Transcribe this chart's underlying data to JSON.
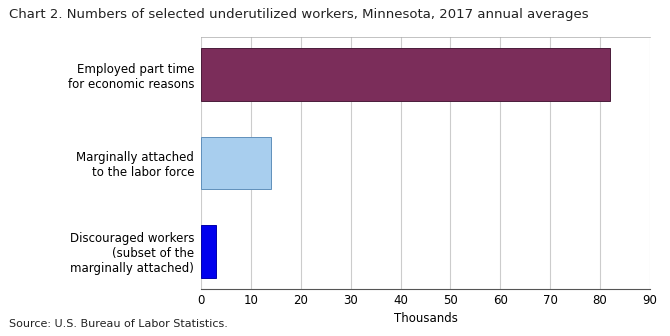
{
  "title": "Chart 2. Numbers of selected underutilized workers, Minnesota, 2017 annual averages",
  "categories": [
    "Discouraged workers\n(subset of the\nmarginally attached)",
    "Marginally attached\nto the labor force",
    "Employed part time\nfor economic reasons"
  ],
  "values": [
    3.0,
    14.0,
    82.0
  ],
  "bar_colors": [
    "#0000EE",
    "#A8CEEE",
    "#7B2D5A"
  ],
  "bar_edgecolors": [
    "#0000AA",
    "#6090BB",
    "#4A1C3A"
  ],
  "xlabel": "Thousands",
  "xlim": [
    0,
    90
  ],
  "xticks": [
    0,
    10,
    20,
    30,
    40,
    50,
    60,
    70,
    80,
    90
  ],
  "background_color": "#ffffff",
  "source_text": "Source: U.S. Bureau of Labor Statistics.",
  "title_fontsize": 9.5,
  "tick_fontsize": 8.5,
  "label_fontsize": 8.5,
  "ylabel_fontsize": 8.5,
  "source_fontsize": 8.0,
  "grid_color": "#cccccc",
  "bar_height": 0.6
}
